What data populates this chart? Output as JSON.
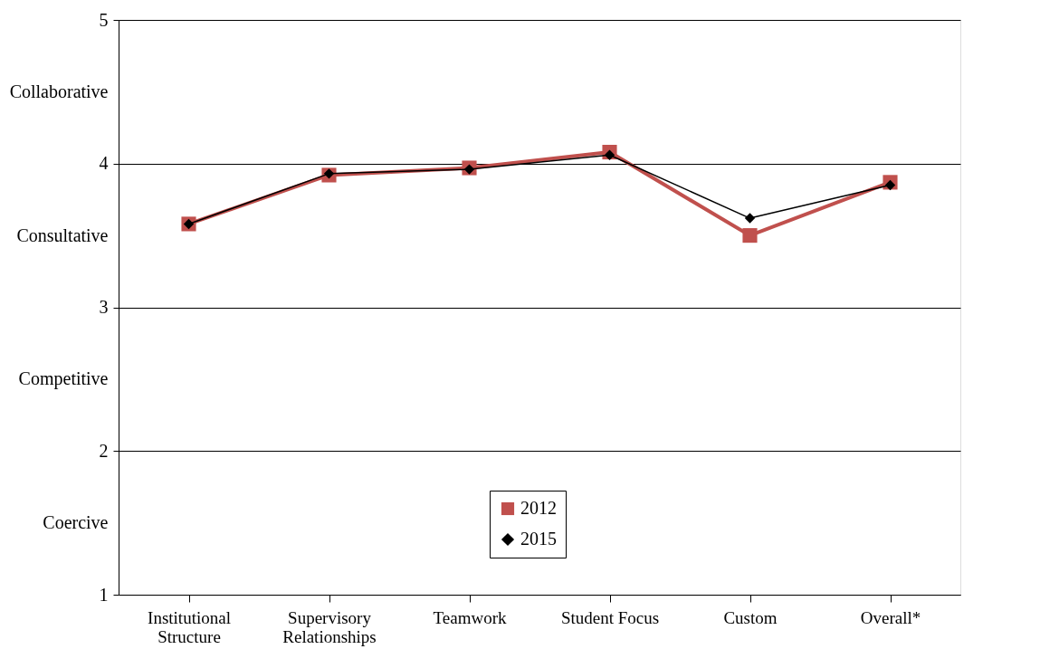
{
  "chart_data": {
    "type": "line",
    "categories": [
      "Institutional Structure",
      "Supervisory Relationships",
      "Teamwork",
      "Student Focus",
      "Custom",
      "Overall*"
    ],
    "series": [
      {
        "name": "2012",
        "color": "#c0504d",
        "marker": "square",
        "values": [
          3.58,
          3.92,
          3.97,
          4.08,
          3.5,
          3.87
        ]
      },
      {
        "name": "2015",
        "color": "#000000",
        "marker": "diamond",
        "values": [
          3.58,
          3.93,
          3.96,
          4.06,
          3.62,
          3.85
        ]
      }
    ],
    "ylim": [
      1,
      5
    ],
    "yticks": [
      1,
      {
        "value": 1.5,
        "label": "Coercive"
      },
      2,
      {
        "value": 2.5,
        "label": "Competitive"
      },
      3,
      {
        "value": 3.5,
        "label": "Consultative"
      },
      4,
      {
        "value": 4.5,
        "label": "Collaborative"
      },
      5
    ],
    "grid": "y",
    "legend": "bottom",
    "line_style": "solid"
  }
}
